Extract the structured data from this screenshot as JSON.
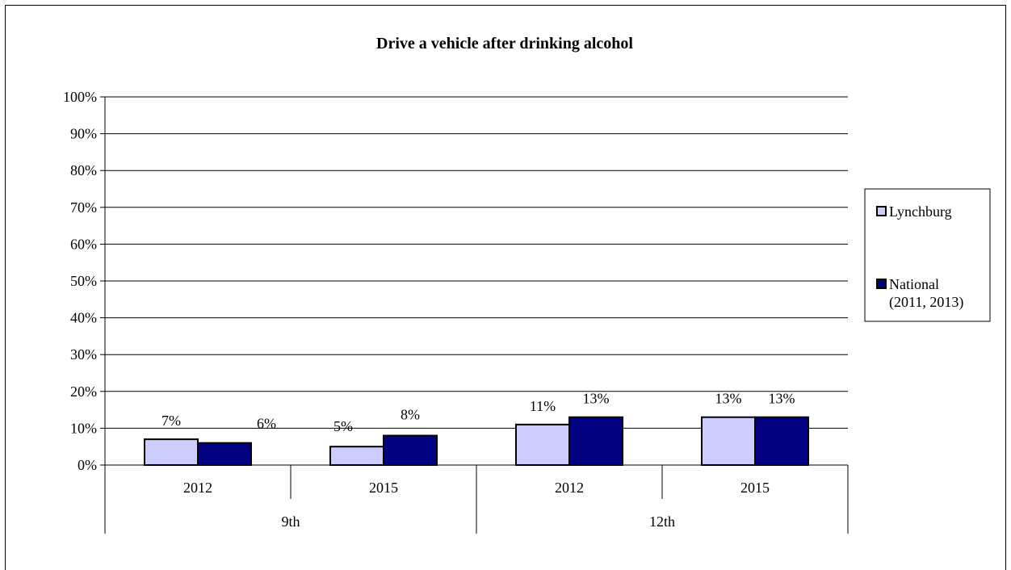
{
  "chart_data": {
    "type": "bar",
    "title": "Drive a vehicle after drinking alcohol",
    "xlabel": "",
    "ylabel": "",
    "ylim": [
      0,
      100
    ],
    "y_ticks": [
      "0%",
      "10%",
      "20%",
      "30%",
      "40%",
      "50%",
      "60%",
      "70%",
      "80%",
      "90%",
      "100%"
    ],
    "grid": true,
    "legend_position": "right",
    "groups": [
      {
        "label": "9th",
        "categories": [
          "2012",
          "2015"
        ]
      },
      {
        "label": "12th",
        "categories": [
          "2012",
          "2015"
        ]
      }
    ],
    "categories": [
      "2012",
      "2015",
      "2012",
      "2015"
    ],
    "series": [
      {
        "name": "Lynchburg",
        "color": "#ccccff",
        "values": [
          7,
          5,
          11,
          13
        ],
        "labels": [
          "7%",
          "5%",
          "11%",
          "13%"
        ]
      },
      {
        "name": "National\n(2011, 2013)",
        "color": "#000080",
        "values": [
          6,
          8,
          13,
          13
        ],
        "labels": [
          "6%",
          "8%",
          "13%",
          "13%"
        ]
      }
    ],
    "legend": [
      {
        "line1": "Lynchburg",
        "line2": ""
      },
      {
        "line1": "National",
        "line2": "(2011, 2013)"
      }
    ]
  }
}
